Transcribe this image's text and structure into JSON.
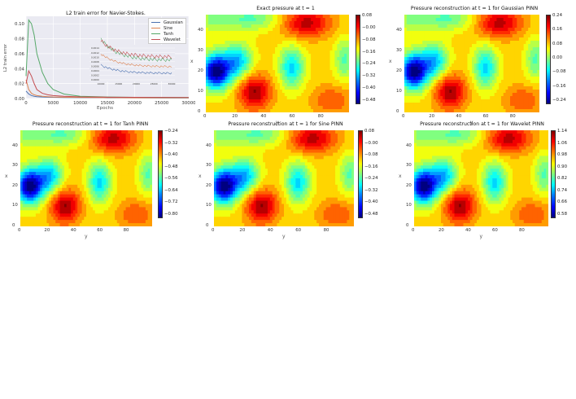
{
  "colors": {
    "Gaussian": "#4c72b0",
    "Sine": "#dd8452",
    "Tanh": "#55a868",
    "Wavelet": "#c44e52",
    "loss_bg": "#eaeaf2",
    "colormap": "jet"
  },
  "chart_data": [
    {
      "type": "line",
      "title": "L2 train error for Navier-Stokes.",
      "xlabel": "Epochs",
      "ylabel": "L2 train error",
      "xlim": [
        0,
        30000
      ],
      "ylim": [
        0,
        0.11
      ],
      "xticks": [
        "0",
        "5000",
        "10000",
        "15000",
        "20000",
        "25000",
        "30000"
      ],
      "yticks": [
        "0.00",
        "0.02",
        "0.04",
        "0.06",
        "0.08",
        "0.10"
      ],
      "legend_position": "top-right",
      "grid": true,
      "x": [
        0,
        500,
        1000,
        1500,
        2000,
        3000,
        4000,
        5000,
        7000,
        10000,
        15000,
        20000,
        25000,
        30000
      ],
      "series": [
        {
          "name": "Gaussian",
          "values": [
            0.01,
            0.006,
            0.004,
            0.003,
            0.0025,
            0.002,
            0.0018,
            0.0016,
            0.0014,
            0.0012,
            0.001,
            0.0009,
            0.0008,
            0.0008
          ]
        },
        {
          "name": "Sine",
          "values": [
            0.025,
            0.012,
            0.007,
            0.005,
            0.004,
            0.003,
            0.0025,
            0.002,
            0.0018,
            0.0015,
            0.0012,
            0.001,
            0.001,
            0.0009
          ]
        },
        {
          "name": "Tanh",
          "values": [
            0.03,
            0.105,
            0.1,
            0.085,
            0.06,
            0.035,
            0.02,
            0.012,
            0.006,
            0.003,
            0.002,
            0.0017,
            0.0015,
            0.0014
          ]
        },
        {
          "name": "Wavelet",
          "values": [
            0.02,
            0.037,
            0.03,
            0.02,
            0.012,
            0.007,
            0.005,
            0.004,
            0.003,
            0.0022,
            0.0018,
            0.0016,
            0.0015,
            0.0014
          ]
        }
      ],
      "inset": {
        "xticks": [
          "10000",
          "15000",
          "20000",
          "25000",
          "30000"
        ],
        "yticks": [
          "0.0014",
          "0.0012",
          "0.0010",
          "0.0008",
          "0.0006",
          "0.0004",
          "0.0002",
          "0.0000"
        ]
      }
    },
    {
      "type": "heatmap",
      "title": "Exact pressure at t = 1",
      "xlabel": "y",
      "ylabel": "x",
      "xticks": [
        "0",
        "20",
        "40",
        "60",
        "80"
      ],
      "yticks": [
        "0",
        "10",
        "20",
        "30",
        "40"
      ],
      "colorbar_ticks": [
        "0.08",
        "−0.00",
        "−0.08",
        "−0.16",
        "−0.24",
        "−0.32",
        "−0.40",
        "−0.48"
      ]
    },
    {
      "type": "heatmap",
      "title": "Pressure reconstruction at t = 1 for Gaussian PINN",
      "xlabel": "y",
      "ylabel": "x",
      "xticks": [
        "0",
        "20",
        "40",
        "60",
        "80"
      ],
      "yticks": [
        "0",
        "10",
        "20",
        "30",
        "40"
      ],
      "colorbar_ticks": [
        "0.24",
        "0.16",
        "0.08",
        "0.00",
        "−0.08",
        "−0.16",
        "−0.24"
      ]
    },
    {
      "type": "heatmap",
      "title": "Pressure reconstruction at t = 1 for Tanh PINN",
      "xlabel": "y",
      "ylabel": "x",
      "xticks": [
        "0",
        "20",
        "40",
        "60",
        "80"
      ],
      "yticks": [
        "0",
        "10",
        "20",
        "30",
        "40"
      ],
      "colorbar_ticks": [
        "−0.24",
        "−0.32",
        "−0.40",
        "−0.48",
        "−0.56",
        "−0.64",
        "−0.72",
        "−0.80"
      ]
    },
    {
      "type": "heatmap",
      "title": "Pressure reconstruction at t = 1 for Sine PINN",
      "xlabel": "y",
      "ylabel": "x",
      "xticks": [
        "0",
        "20",
        "40",
        "60",
        "80"
      ],
      "yticks": [
        "0",
        "10",
        "20",
        "30",
        "40"
      ],
      "colorbar_ticks": [
        "0.08",
        "−0.00",
        "−0.08",
        "−0.16",
        "−0.24",
        "−0.32",
        "−0.40",
        "−0.48"
      ]
    },
    {
      "type": "heatmap",
      "title": "Pressure reconstruction at t = 1 for Wavelet PINN",
      "xlabel": "y",
      "ylabel": "x",
      "xticks": [
        "0",
        "20",
        "40",
        "60",
        "80"
      ],
      "yticks": [
        "0",
        "10",
        "20",
        "30",
        "40"
      ],
      "colorbar_ticks": [
        "1.14",
        "1.06",
        "0.98",
        "0.90",
        "0.82",
        "0.74",
        "0.66",
        "0.58"
      ]
    }
  ]
}
